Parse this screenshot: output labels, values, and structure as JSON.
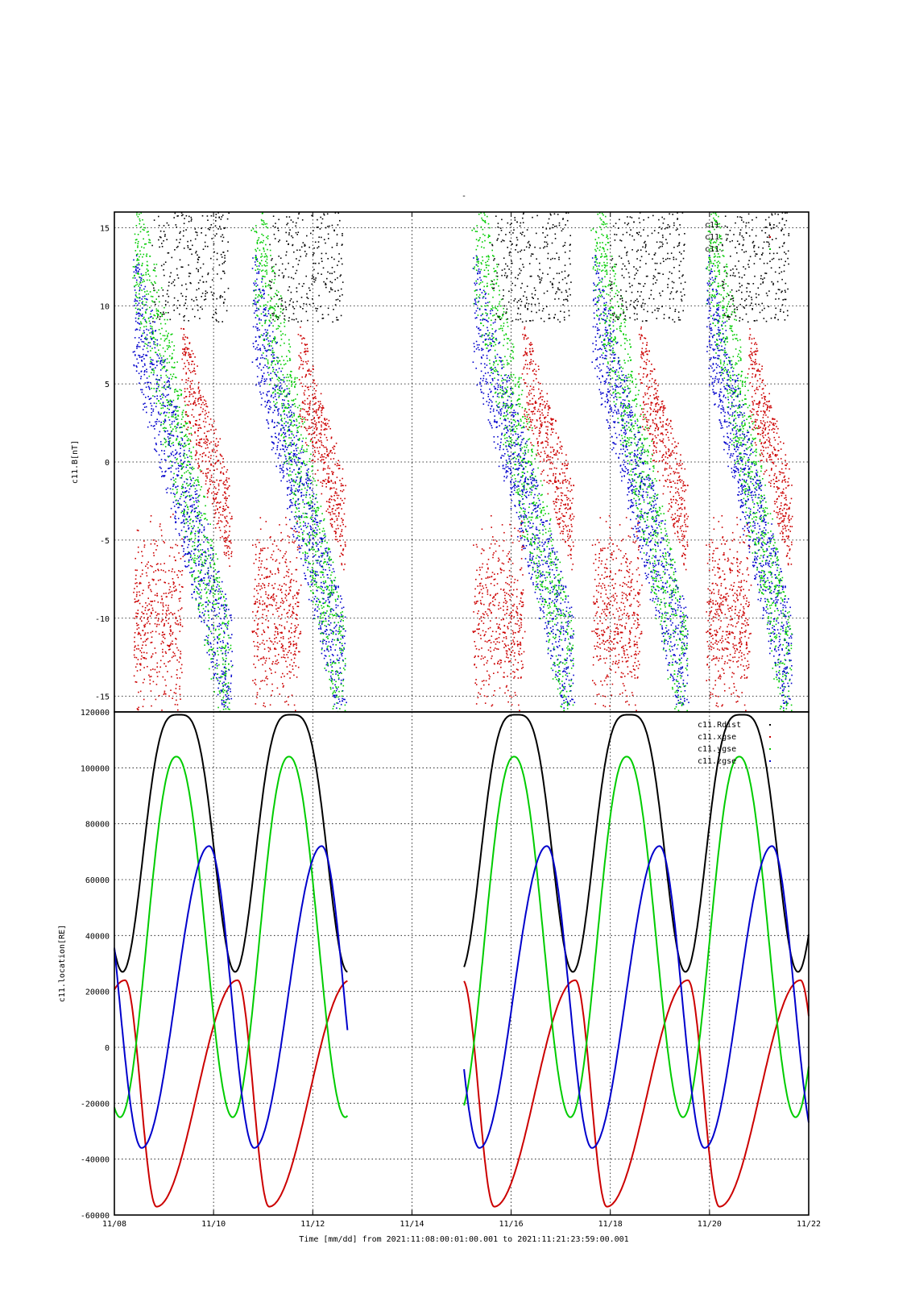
{
  "title_mark": "-",
  "x_axis": {
    "label": "Time [mm/dd]  from 2021:11:08:00:01:00.001  to  2021:11:21:23:59:00.001",
    "range_days": [
      0,
      14
    ],
    "ticks": [
      {
        "day": 0,
        "label": "11/08"
      },
      {
        "day": 2,
        "label": "11/10"
      },
      {
        "day": 4,
        "label": "11/12"
      },
      {
        "day": 6,
        "label": "11/14"
      },
      {
        "day": 8,
        "label": "11/16"
      },
      {
        "day": 10,
        "label": "11/18"
      },
      {
        "day": 12,
        "label": "11/20"
      },
      {
        "day": 14,
        "label": "11/22"
      }
    ]
  },
  "colors": {
    "black": "#000000",
    "red": "#cc0000",
    "green": "#00cc00",
    "blue": "#0000cc"
  },
  "chart_data": [
    {
      "type": "scatter",
      "ylabel": "c11.B[nT]",
      "ylim": [
        -16,
        16
      ],
      "yticks": [
        -15,
        -10,
        -5,
        0,
        5,
        10,
        15
      ],
      "grid": true,
      "legend_placement": "top-right",
      "legend_entries": [
        "c11.",
        "c11.",
        "c11."
      ],
      "series": [
        {
          "color": "black",
          "note_range": [
            10,
            16
          ]
        },
        {
          "color": "red"
        },
        {
          "color": "green"
        },
        {
          "color": "blue"
        }
      ],
      "data_segments": [
        [
          0.3,
          4.6
        ],
        [
          7.1,
          13.6
        ]
      ]
    },
    {
      "type": "line",
      "ylabel": "c11.location[RE]",
      "ylim": [
        -60000,
        120000
      ],
      "yticks": [
        -60000,
        -40000,
        -20000,
        0,
        20000,
        40000,
        60000,
        80000,
        100000,
        120000
      ],
      "grid": true,
      "legend_placement": "top-right",
      "legend_entries": [
        "c11.Rdist",
        "c11.xgse",
        "c11.ygse",
        "c11.zgse"
      ],
      "period_days": 2.27,
      "segments": [
        [
          0,
          4.7
        ],
        [
          7.05,
          14
        ]
      ],
      "series": [
        {
          "name": "c11.Rdist",
          "color": "black",
          "min": 27000,
          "max": 119000,
          "peak_day": 1.3
        },
        {
          "name": "c11.xgse",
          "color": "red",
          "min": -57000,
          "max": 24000
        },
        {
          "name": "c11.ygse",
          "color": "green",
          "min": -25000,
          "max": 104000,
          "peak_day": 1.25
        },
        {
          "name": "c11.zgse",
          "color": "blue",
          "min": -36000,
          "max": 72000,
          "peak_day": 1.9
        }
      ]
    }
  ]
}
